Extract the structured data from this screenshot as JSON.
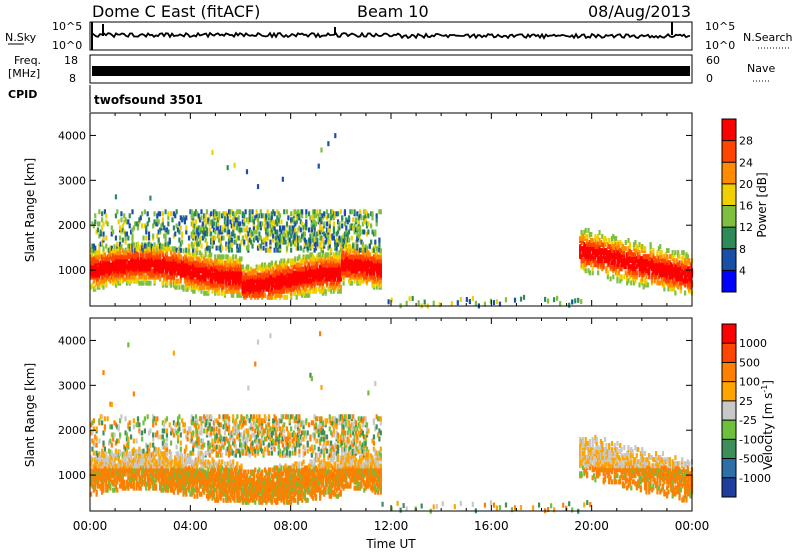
{
  "header": {
    "station": "Dome C East (fitACF)",
    "beam": "Beam 10",
    "date": "08/Aug/2013"
  },
  "status_panels": {
    "nsky_label": "N.Sky",
    "nsky_ticks": [
      "10^5",
      "10^0"
    ],
    "nsearch_label": "N.Search",
    "freq_label": "Freq.",
    "freq_unit": "[MHz]",
    "freq_ticks": [
      "18",
      "8"
    ],
    "nave_label": "Nave",
    "nave_ticks": [
      "60",
      "0"
    ],
    "cpid_label": "CPID",
    "cpid_value": "twofsound 3501"
  },
  "chart_data": [
    {
      "type": "heatmap",
      "name": "power",
      "ylabel": "Slant Range [km]",
      "ylim": [
        200,
        4500
      ],
      "xlim": [
        0,
        24
      ],
      "yticks": [
        "1000",
        "2000",
        "3000",
        "4000"
      ],
      "colorbar": {
        "label": "Power [dB]",
        "ticks": [
          "4",
          "8",
          "12",
          "16",
          "20",
          "24",
          "28"
        ],
        "colors": [
          "#0000ff",
          "#1a4fa8",
          "#2e8b57",
          "#7fbf3f",
          "#f0d000",
          "#ff8c00",
          "#ff4500",
          "#ff0000"
        ]
      }
    },
    {
      "type": "heatmap",
      "name": "velocity",
      "ylabel": "Slant Range [km]",
      "ylim": [
        200,
        4500
      ],
      "xlim": [
        0,
        24
      ],
      "yticks": [
        "1000",
        "2000",
        "3000",
        "4000"
      ],
      "colorbar": {
        "label": "Velocity [m s",
        "label_sup": "-1",
        "label_end": "]",
        "ticks": [
          "1000",
          "500",
          "100",
          "25",
          "-25",
          "-100",
          "-500",
          "-1000"
        ],
        "colors": [
          "#1f3f9f",
          "#2e6fa8",
          "#3c8f5a",
          "#6fbf3f",
          "#c8c8c8",
          "#ffa500",
          "#ff7f00",
          "#ff4500",
          "#ff0000"
        ]
      }
    }
  ],
  "xaxis": {
    "label": "Time UT",
    "ticks": [
      "00:00",
      "04:00",
      "08:00",
      "12:00",
      "16:00",
      "20:00",
      "00:00"
    ]
  }
}
